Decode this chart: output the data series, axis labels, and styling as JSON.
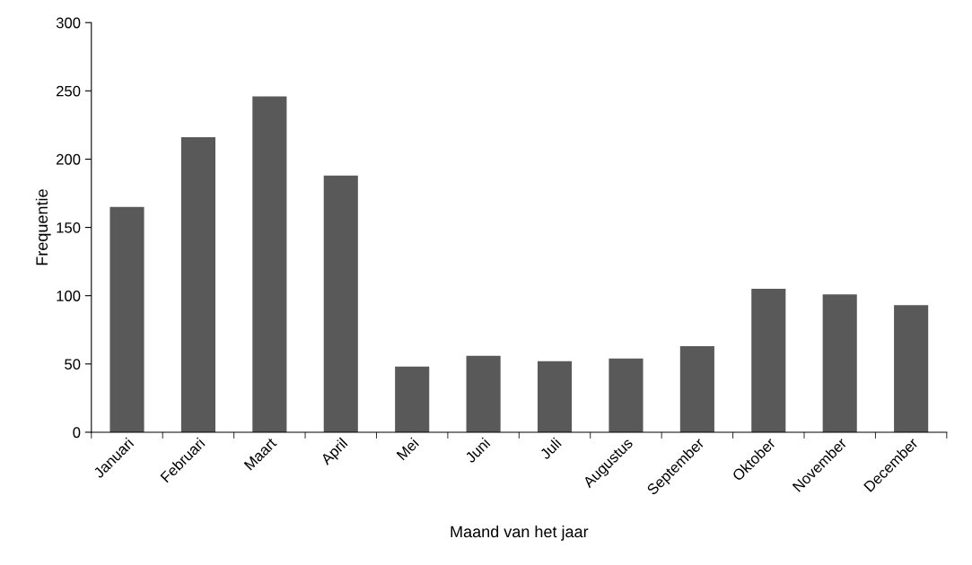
{
  "chart_data": {
    "type": "bar",
    "xlabel": "Maand van het jaar",
    "ylabel": "Frequentie",
    "categories": [
      "Januari",
      "Februari",
      "Maart",
      "April",
      "Mei",
      "Juni",
      "Juli",
      "Augustus",
      "September",
      "Oktober",
      "November",
      "December"
    ],
    "values": [
      165,
      216,
      246,
      188,
      48,
      56,
      52,
      54,
      63,
      105,
      101,
      93
    ],
    "color": "#595959",
    "ylim": [
      0,
      300
    ],
    "yticks": [
      0,
      50,
      100,
      150,
      200,
      250,
      300
    ],
    "grid": false,
    "legend": false
  }
}
